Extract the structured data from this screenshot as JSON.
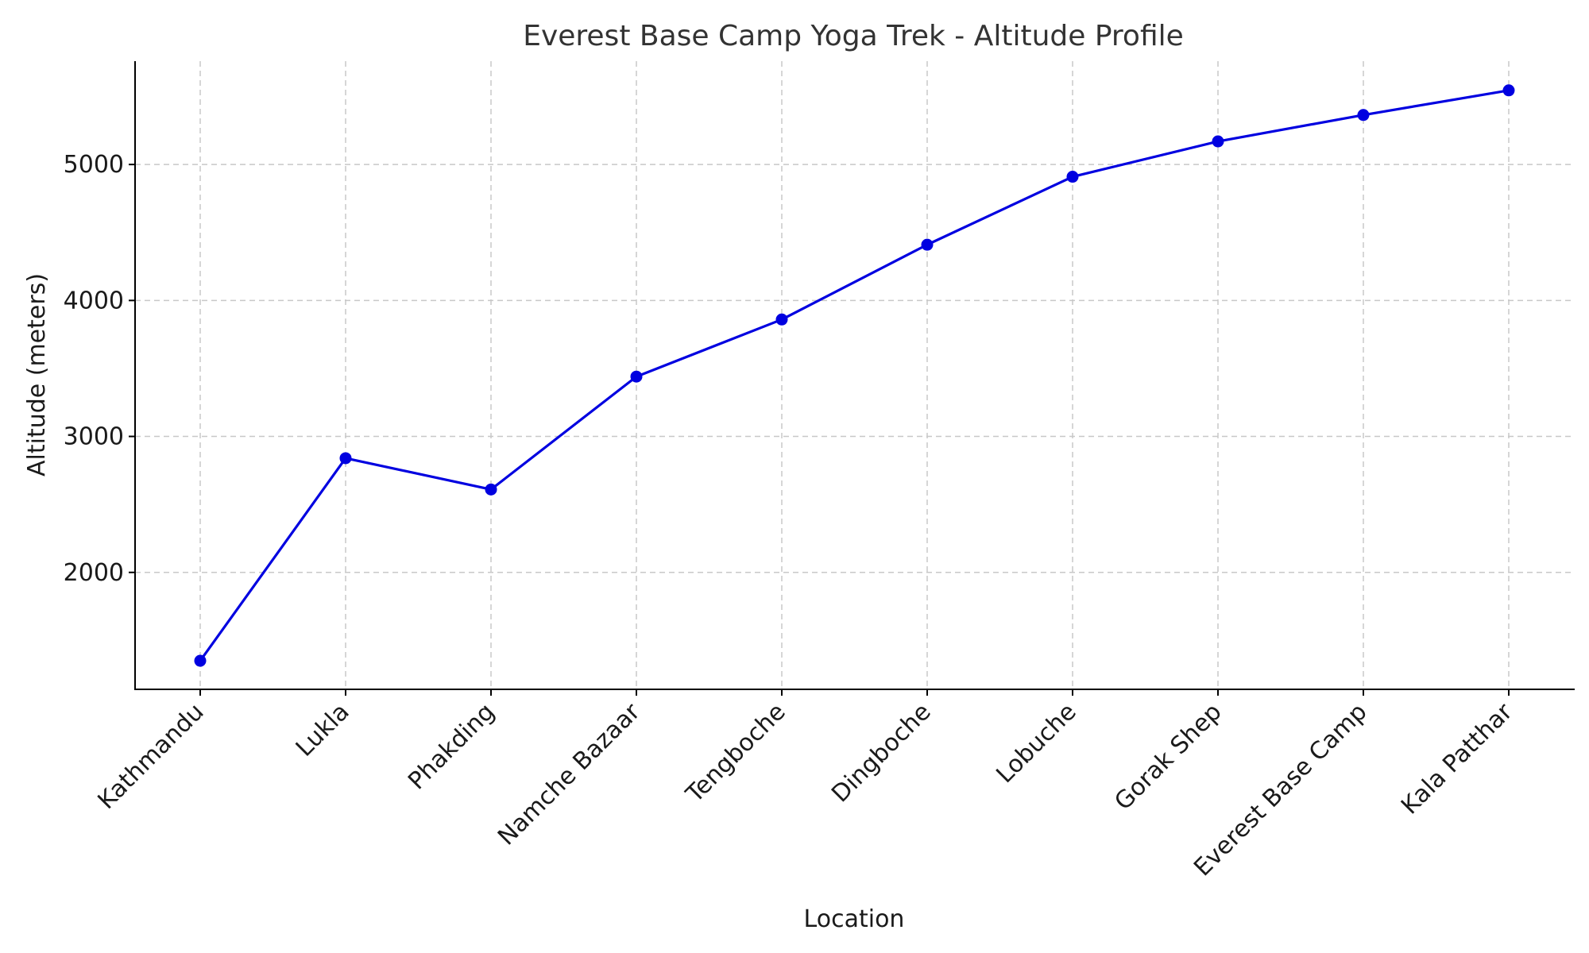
{
  "chart_data": {
    "type": "line",
    "title": "Everest Base Camp Yoga Trek - Altitude Profile",
    "xlabel": "Location",
    "ylabel": "Altitude (meters)",
    "categories": [
      "Kathmandu",
      "Lukla",
      "Phakding",
      "Namche Bazaar",
      "Tengboche",
      "Dingboche",
      "Lobuche",
      "Gorak Shep",
      "Everest Base Camp",
      "Kala Patthar"
    ],
    "series": [
      {
        "values": [
          1350,
          2840,
          2610,
          3440,
          3860,
          4410,
          4910,
          5170,
          5364,
          5545
        ],
        "color": "#0000e0",
        "marker": "circle"
      }
    ],
    "yticks": [
      2000,
      3000,
      4000,
      5000
    ],
    "ylim": [
      1140,
      5760
    ],
    "grid": true,
    "legend": false
  }
}
